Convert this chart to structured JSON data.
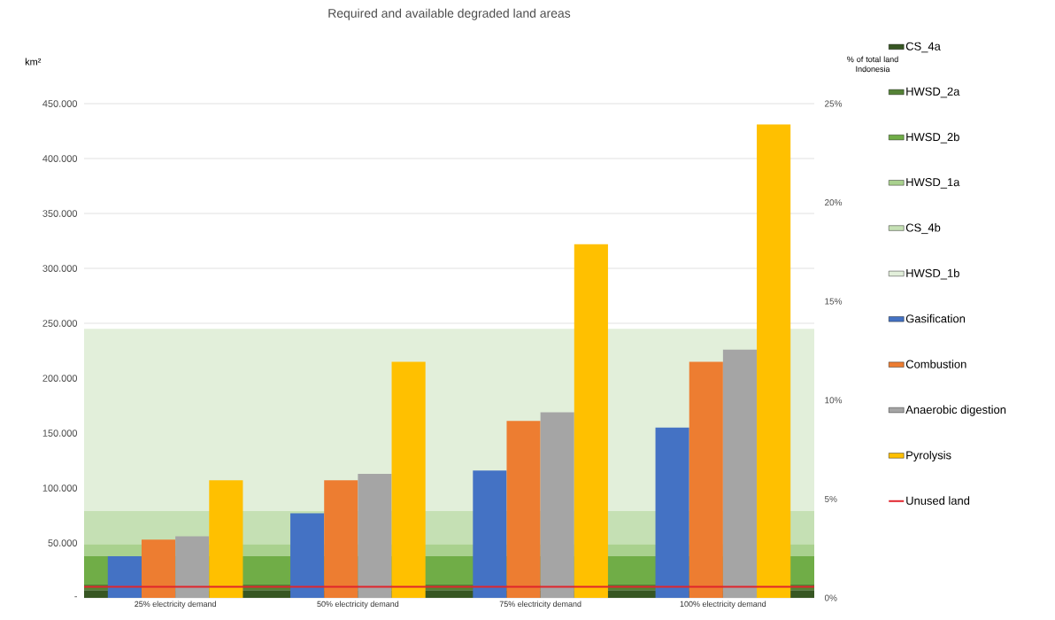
{
  "chart_data": {
    "type": "bar",
    "title": "Required and available degraded land areas",
    "ylabel": "km²",
    "y2label": "% of total land Indonesia",
    "categories": [
      "25% electricity demand",
      "50% electricity demand",
      "75% electricity demand",
      "100% electricity demand"
    ],
    "series": [
      {
        "name": "Gasification",
        "color": "#4472c4",
        "values": [
          38000,
          77000,
          116000,
          155000
        ]
      },
      {
        "name": "Combustion",
        "color": "#ed7d31",
        "values": [
          53000,
          107000,
          161000,
          215000
        ]
      },
      {
        "name": "Anaerobic digestion",
        "color": "#a5a5a5",
        "values": [
          56000,
          113000,
          169000,
          226000
        ]
      },
      {
        "name": "Pyrolysis",
        "color": "#ffc000",
        "values": [
          107000,
          215000,
          322000,
          431000
        ]
      }
    ],
    "bands": [
      {
        "axis": "y",
        "from": 0,
        "to": 7000,
        "label": "CS_4a",
        "color": "#375623"
      },
      {
        "axis": "y",
        "from": 7000,
        "to": 12000,
        "label": "HWSD_2a",
        "color": "#548235"
      },
      {
        "axis": "y",
        "from": 12000,
        "to": 38000,
        "label": "HWSD_2b",
        "color": "#70ad47"
      },
      {
        "axis": "y",
        "from": 38000,
        "to": 49000,
        "label": "HWSD_1a",
        "color": "#a9d18e"
      },
      {
        "axis": "y",
        "from": 49000,
        "to": 79000,
        "label": "CS_4b",
        "color": "#c5e0b4"
      },
      {
        "axis": "y",
        "from": 79000,
        "to": 245000,
        "label": "HWSD_1b",
        "color": "#e2efda"
      }
    ],
    "ref_lines": [
      {
        "axis": "y",
        "value": 10000,
        "label": "Unused land",
        "color": "#e0242c"
      }
    ],
    "ylim": [
      0,
      450000
    ],
    "yticks": [
      {
        "value": 0,
        "label": "-"
      },
      {
        "value": 50000,
        "label": "50.000"
      },
      {
        "value": 100000,
        "label": "100.000"
      },
      {
        "value": 150000,
        "label": "150.000"
      },
      {
        "value": 200000,
        "label": "200.000"
      },
      {
        "value": 250000,
        "label": "250.000"
      },
      {
        "value": 300000,
        "label": "300.000"
      },
      {
        "value": 350000,
        "label": "350.000"
      },
      {
        "value": 400000,
        "label": "400.000"
      },
      {
        "value": 450000,
        "label": "450.000"
      }
    ],
    "y2lim": [
      0,
      25
    ],
    "y2ticks": [
      {
        "value": 0,
        "label": "0%"
      },
      {
        "value": 5,
        "label": "5%"
      },
      {
        "value": 10,
        "label": "10%"
      },
      {
        "value": 15,
        "label": "15%"
      },
      {
        "value": 20,
        "label": "20%"
      },
      {
        "value": 25,
        "label": "25%"
      }
    ],
    "grid": "y",
    "legend": "right"
  }
}
